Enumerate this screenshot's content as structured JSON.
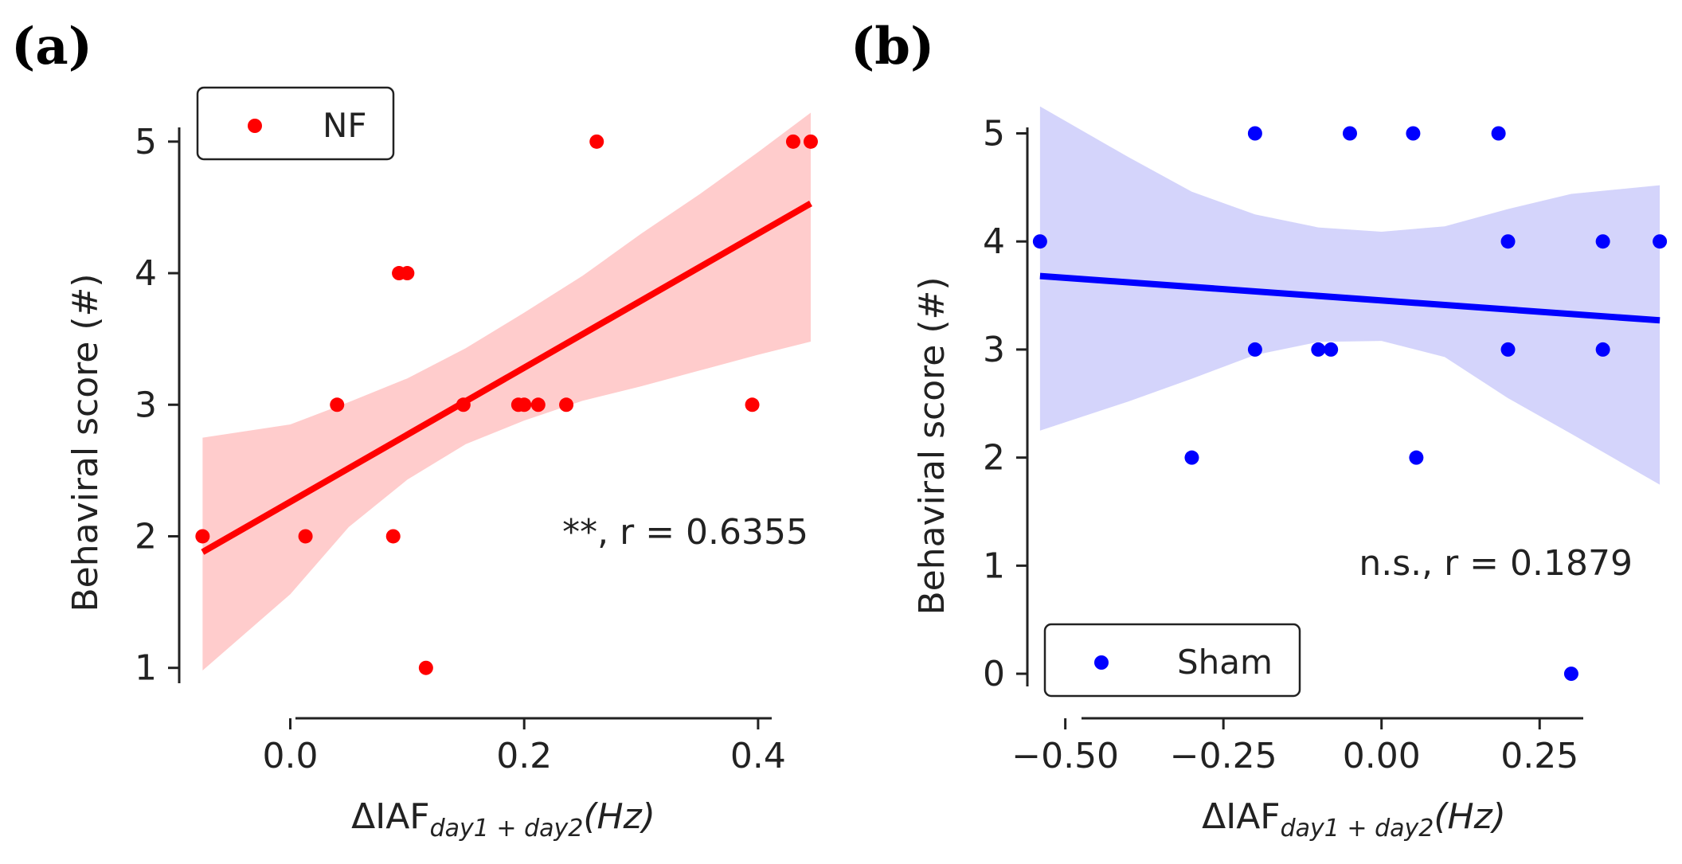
{
  "chart_data": [
    {
      "panel_label": "(a)",
      "type": "scatter",
      "series": [
        {
          "name": "NF",
          "color": "#ff0000",
          "band_color": "#ffcccc",
          "x": [
            -0.075,
            0.013,
            0.04,
            0.088,
            0.093,
            0.1,
            0.116,
            0.148,
            0.195,
            0.2,
            0.212,
            0.236,
            0.262,
            0.395,
            0.43,
            0.445
          ],
          "y": [
            2,
            2,
            3,
            2,
            4,
            4,
            1,
            3,
            3,
            3,
            3,
            3,
            5,
            3,
            5,
            5
          ]
        }
      ],
      "fit_line": {
        "x": [
          -0.075,
          0.445
        ],
        "y": [
          1.88,
          4.53
        ]
      },
      "ci_band": {
        "x": [
          -0.075,
          0.0,
          0.05,
          0.1,
          0.15,
          0.2,
          0.25,
          0.3,
          0.35,
          0.4,
          0.445
        ],
        "lower": [
          0.98,
          1.56,
          2.07,
          2.43,
          2.7,
          2.88,
          3.03,
          3.14,
          3.26,
          3.38,
          3.48
        ],
        "upper": [
          2.75,
          2.85,
          3.02,
          3.2,
          3.43,
          3.7,
          3.98,
          4.3,
          4.6,
          4.92,
          5.22
        ]
      },
      "xlabel": "ΔIAF",
      "xlabel_sub": "day1 + day2",
      "xlabel_suffix": "(Hz)",
      "ylabel": "Behaviral score (#)",
      "xlim": [
        -0.095,
        0.46
      ],
      "ylim": [
        0.75,
        5.35
      ],
      "xticks": [
        0.0,
        0.2,
        0.4
      ],
      "xtick_labels": [
        "0.0",
        "0.2",
        "0.4"
      ],
      "yticks": [
        1,
        2,
        3,
        4,
        5
      ],
      "ytick_labels": [
        "1",
        "2",
        "3",
        "4",
        "5"
      ],
      "annotation": "**, r = 0.6355",
      "legend": {
        "label": "NF",
        "position": "top-left"
      }
    },
    {
      "panel_label": "(b)",
      "type": "scatter",
      "series": [
        {
          "name": "Sham",
          "color": "#0000ff",
          "band_color": "#d4d4fb",
          "x": [
            -0.54,
            -0.3,
            -0.2,
            -0.2,
            -0.1,
            -0.05,
            -0.08,
            0.05,
            0.055,
            0.185,
            0.2,
            0.2,
            0.3,
            0.35,
            0.35,
            0.44
          ],
          "y": [
            4,
            2,
            5,
            3,
            3,
            5,
            3,
            5,
            2,
            5,
            4,
            3,
            0,
            4,
            3,
            4
          ]
        }
      ],
      "fit_line": {
        "x": [
          -0.54,
          0.44
        ],
        "y": [
          3.68,
          3.27
        ]
      },
      "ci_band": {
        "x": [
          -0.54,
          -0.4,
          -0.3,
          -0.2,
          -0.1,
          0.0,
          0.1,
          0.2,
          0.3,
          0.44
        ],
        "lower": [
          2.25,
          2.52,
          2.73,
          2.95,
          3.07,
          3.08,
          2.93,
          2.55,
          2.22,
          1.75
        ],
        "upper": [
          5.25,
          4.78,
          4.46,
          4.25,
          4.13,
          4.09,
          4.14,
          4.3,
          4.44,
          4.52
        ]
      },
      "xlabel": "ΔIAF",
      "xlabel_sub": "day1 + day2",
      "xlabel_suffix": "(Hz)",
      "ylabel": "Behaviral score (#)",
      "xlim": [
        -0.56,
        0.46
      ],
      "ylim": [
        -0.25,
        5.35
      ],
      "xticks": [
        -0.5,
        -0.25,
        0.0,
        0.25
      ],
      "xtick_labels": [
        "−0.50",
        "−0.25",
        "0.00",
        "0.25"
      ],
      "yticks": [
        0,
        1,
        2,
        3,
        4,
        5
      ],
      "ytick_labels": [
        "0",
        "1",
        "2",
        "3",
        "4",
        "5"
      ],
      "annotation": "n.s., r = 0.1879",
      "legend": {
        "label": "Sham",
        "position": "bottom-left"
      }
    }
  ]
}
